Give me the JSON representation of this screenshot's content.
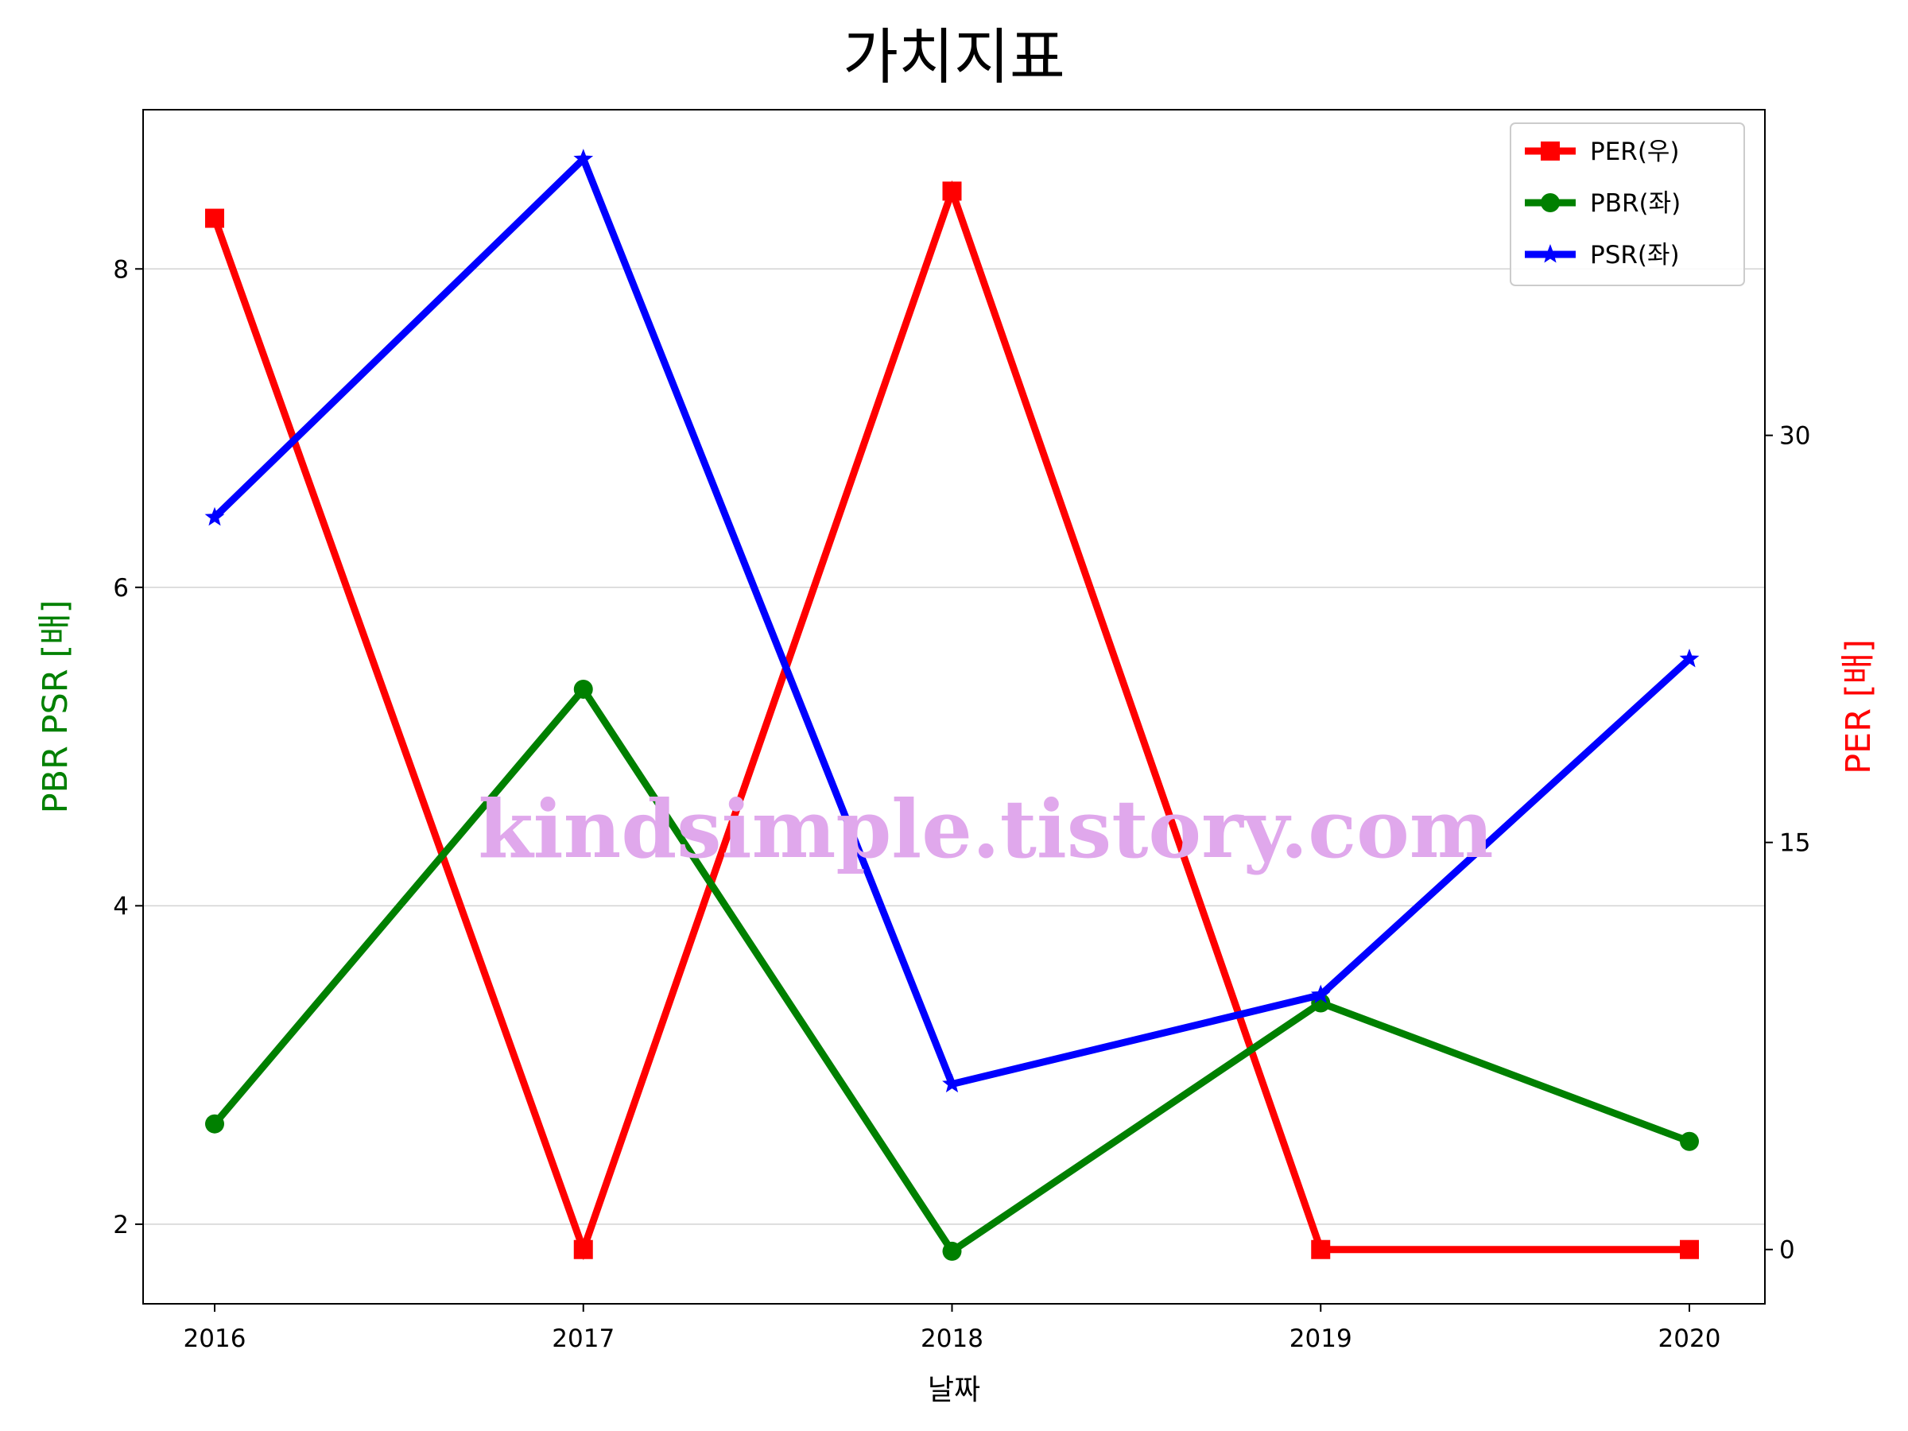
{
  "chart_data": {
    "type": "line",
    "title": "가치지표",
    "xlabel": "날짜",
    "ylabel_left": "PBR PSR [배]",
    "ylabel_right": "PER [배]",
    "categories": [
      "2016",
      "2017",
      "2018",
      "2019",
      "2020"
    ],
    "ylim_left": [
      1.5,
      9.0
    ],
    "ylim_right": [
      -2.0,
      42.0
    ],
    "yticks_left": [
      2,
      4,
      6,
      8
    ],
    "yticks_right": [
      0,
      15,
      30
    ],
    "grid": "horizontal (left axis)",
    "legend_position": "top-right",
    "series": [
      {
        "name": "PER(우)",
        "axis": "right",
        "color": "#ff0000",
        "marker": "square",
        "values": [
          38.0,
          0.0,
          39.0,
          0.0,
          0.0
        ]
      },
      {
        "name": "PBR(좌)",
        "axis": "left",
        "color": "#008000",
        "marker": "circle",
        "values": [
          2.63,
          5.36,
          1.83,
          3.39,
          2.52
        ]
      },
      {
        "name": "PSR(좌)",
        "axis": "left",
        "color": "#0000ff",
        "marker": "star",
        "values": [
          6.44,
          8.69,
          2.88,
          3.44,
          5.55
        ]
      }
    ],
    "watermark": "kindsimple.tistory.com"
  }
}
